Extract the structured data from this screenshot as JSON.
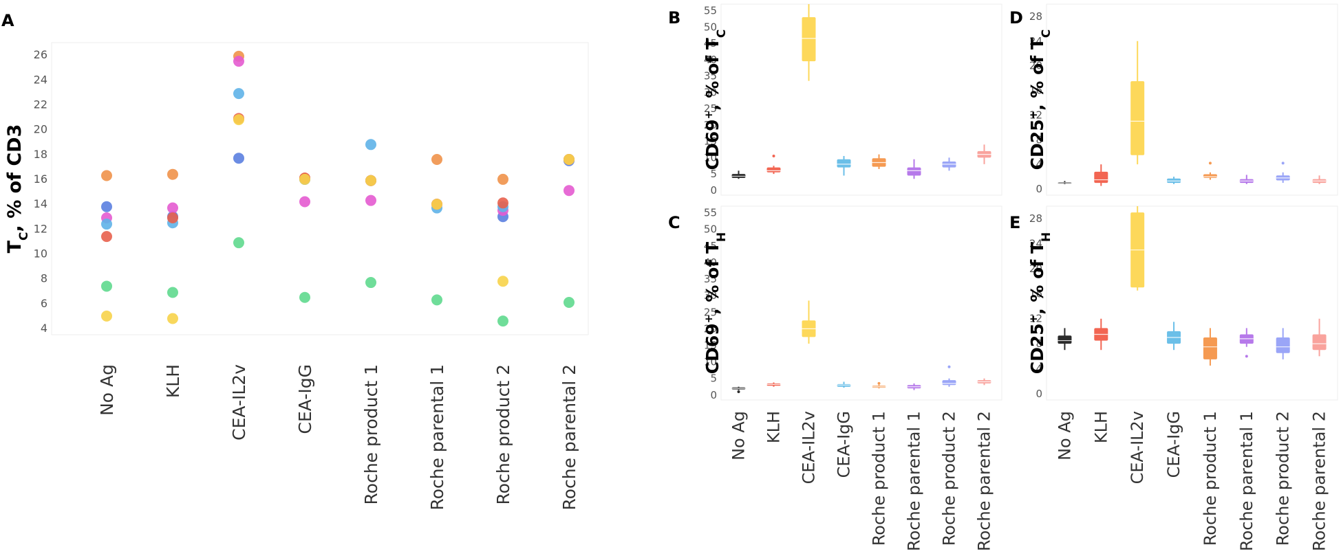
{
  "chart_data": [
    {
      "panel": "A",
      "type": "scatter",
      "ylabel_main": "T",
      "ylabel_sub": "C",
      "ylabel_rest": ", % of CD3",
      "categories": [
        "No Ag",
        "KLH",
        "CEA-IL2v",
        "CEA-IgG",
        "Roche product 1",
        "Roche parental 1",
        "Roche product 2",
        "Roche parental 2"
      ],
      "ylim": [
        3.5,
        27
      ],
      "yticks": [
        4,
        6,
        8,
        10,
        12,
        14,
        16,
        18,
        20,
        22,
        24,
        26
      ],
      "donors": [
        {
          "name": "orange",
          "color": "#f0924a",
          "values": [
            16.3,
            16.4,
            25.9,
            16.1,
            15.9,
            17.6,
            16.0,
            17.6
          ]
        },
        {
          "name": "blue",
          "color": "#5b7fe0",
          "values": [
            13.8,
            13.0,
            17.7,
            16.0,
            15.9,
            14.0,
            13.0,
            17.5
          ]
        },
        {
          "name": "magenta",
          "color": "#e45bd0",
          "values": [
            12.9,
            13.7,
            25.5,
            14.2,
            14.3,
            14.0,
            13.5,
            15.1
          ]
        },
        {
          "name": "lightblue",
          "color": "#5fb3e8",
          "values": [
            12.4,
            12.5,
            22.9,
            16.0,
            18.8,
            13.7,
            13.8,
            17.6
          ]
        },
        {
          "name": "red",
          "color": "#e8604d",
          "values": [
            11.4,
            12.9,
            20.9,
            16.1,
            15.9,
            14.0,
            14.1,
            17.6
          ]
        },
        {
          "name": "green",
          "color": "#5fd98e",
          "values": [
            7.4,
            6.9,
            10.9,
            6.5,
            7.7,
            6.3,
            4.6,
            6.1
          ]
        },
        {
          "name": "yellow",
          "color": "#f7d34a",
          "values": [
            5.0,
            4.8,
            20.8,
            16.0,
            15.9,
            14.0,
            7.8,
            17.6
          ]
        }
      ]
    },
    {
      "panel": "B",
      "type": "box",
      "ylabel_main": "CD69",
      "ylabel_sup": "+",
      "ylabel_rest": ", % of T",
      "ylabel_sub": "C",
      "categories": [
        "No Ag",
        "KLH",
        "CEA-IL2v",
        "CEA-IgG",
        "Roche product 1",
        "Roche parental 1",
        "Roche product 2",
        "Roche parental 2"
      ],
      "ylim": [
        -1.5,
        57
      ],
      "yticks": [
        0,
        5,
        10,
        15,
        20,
        25,
        30,
        35,
        40,
        45,
        50,
        55
      ],
      "boxes": [
        {
          "min": 3.5,
          "q1": 3.8,
          "median": 4.3,
          "q3": 5.0,
          "max": 6.0,
          "outliers": []
        },
        {
          "min": 5.0,
          "q1": 5.5,
          "median": 6.0,
          "q3": 7.0,
          "max": 7.5,
          "outliers": [
            10.5
          ]
        },
        {
          "min": 33.5,
          "q1": 39.5,
          "median": 46.5,
          "q3": 53.0,
          "max": 57.0,
          "outliers": []
        },
        {
          "min": 4.5,
          "q1": 7.0,
          "median": 8.0,
          "q3": 9.5,
          "max": 10.5,
          "outliers": []
        },
        {
          "min": 6.5,
          "q1": 7.2,
          "median": 8.5,
          "q3": 9.8,
          "max": 11.0,
          "outliers": []
        },
        {
          "min": 3.5,
          "q1": 4.5,
          "median": 6.0,
          "q3": 7.0,
          "max": 9.5,
          "outliers": []
        },
        {
          "min": 6.0,
          "q1": 7.0,
          "median": 8.0,
          "q3": 8.8,
          "max": 10.0,
          "outliers": []
        },
        {
          "min": 8.0,
          "q1": 10.0,
          "median": 11.0,
          "q3": 12.0,
          "max": 14.0,
          "outliers": []
        }
      ]
    },
    {
      "panel": "C",
      "type": "box",
      "ylabel_main": "CD69",
      "ylabel_sup": "+",
      "ylabel_rest": ", % of T",
      "ylabel_sub": "H",
      "categories": [
        "No Ag",
        "KLH",
        "CEA-IL2v",
        "CEA-IgG",
        "Roche product 1",
        "Roche parental 1",
        "Roche product 2",
        "Roche parental 2"
      ],
      "ylim": [
        -1.5,
        57
      ],
      "yticks": [
        0,
        5,
        10,
        15,
        20,
        25,
        30,
        35,
        40,
        45,
        50,
        55
      ],
      "boxes": [
        {
          "min": 1.5,
          "q1": 1.7,
          "median": 2.0,
          "q3": 2.3,
          "max": 2.5,
          "outliers": [
            1.0
          ]
        },
        {
          "min": 2.5,
          "q1": 2.8,
          "median": 3.2,
          "q3": 3.5,
          "max": 3.8,
          "outliers": []
        },
        {
          "min": 15.5,
          "q1": 17.5,
          "median": 20.0,
          "q3": 22.5,
          "max": 28.5,
          "outliers": []
        },
        {
          "min": 2.2,
          "q1": 2.5,
          "median": 3.0,
          "q3": 3.3,
          "max": 4.0,
          "outliers": []
        },
        {
          "min": 2.0,
          "q1": 2.2,
          "median": 2.5,
          "q3": 2.8,
          "max": 3.0,
          "outliers": [
            3.5
          ]
        },
        {
          "min": 1.5,
          "q1": 2.0,
          "median": 2.5,
          "q3": 3.0,
          "max": 3.5,
          "outliers": []
        },
        {
          "min": 2.5,
          "q1": 3.0,
          "median": 3.5,
          "q3": 4.5,
          "max": 5.0,
          "outliers": [
            8.5
          ]
        },
        {
          "min": 3.0,
          "q1": 3.5,
          "median": 4.0,
          "q3": 4.5,
          "max": 5.0,
          "outliers": []
        }
      ]
    },
    {
      "panel": "D",
      "type": "box",
      "ylabel_main": "CD25",
      "ylabel_sup": "+",
      "ylabel_rest": ", % of T",
      "ylabel_sub": "C",
      "categories": [
        "No Ag",
        "KLH",
        "CEA-IL2v",
        "CEA-IgG",
        "Roche product 1",
        "Roche parental 1",
        "Roche product 2",
        "Roche parental 2"
      ],
      "ylim": [
        -1,
        30
      ],
      "yticks": [
        0,
        4,
        8,
        12,
        16,
        20,
        24,
        28
      ],
      "boxes": [
        {
          "min": 0.8,
          "q1": 0.9,
          "median": 1.0,
          "q3": 1.1,
          "max": 1.3,
          "outliers": []
        },
        {
          "min": 0.5,
          "q1": 1.0,
          "median": 1.5,
          "q3": 2.8,
          "max": 4.0,
          "outliers": []
        },
        {
          "min": 4.0,
          "q1": 5.5,
          "median": 11.0,
          "q3": 17.5,
          "max": 24.0,
          "outliers": []
        },
        {
          "min": 0.8,
          "q1": 1.0,
          "median": 1.3,
          "q3": 1.7,
          "max": 2.0,
          "outliers": []
        },
        {
          "min": 1.5,
          "q1": 1.8,
          "median": 2.0,
          "q3": 2.4,
          "max": 2.7,
          "outliers": [
            4.2
          ]
        },
        {
          "min": 0.8,
          "q1": 1.0,
          "median": 1.3,
          "q3": 1.6,
          "max": 2.3,
          "outliers": []
        },
        {
          "min": 1.0,
          "q1": 1.4,
          "median": 1.8,
          "q3": 2.2,
          "max": 2.7,
          "outliers": [
            4.2
          ]
        },
        {
          "min": 0.8,
          "q1": 1.0,
          "median": 1.3,
          "q3": 1.6,
          "max": 2.2,
          "outliers": []
        }
      ]
    },
    {
      "panel": "E",
      "type": "box",
      "ylabel_main": "CD25",
      "ylabel_sup": "+",
      "ylabel_rest": ", % of T",
      "ylabel_sub": "H",
      "categories": [
        "No Ag",
        "KLH",
        "CEA-IL2v",
        "CEA-IgG",
        "Roche product 1",
        "Roche parental 1",
        "Roche product 2",
        "Roche parental 2"
      ],
      "ylim": [
        -1,
        30
      ],
      "yticks": [
        0,
        4,
        8,
        12,
        16,
        20,
        24,
        28
      ],
      "boxes": [
        {
          "min": 7.0,
          "q1": 8.0,
          "median": 8.5,
          "q3": 9.3,
          "max": 10.5,
          "outliers": []
        },
        {
          "min": 7.0,
          "q1": 8.5,
          "median": 9.5,
          "q3": 10.5,
          "max": 12.0,
          "outliers": []
        },
        {
          "min": 16.5,
          "q1": 17.0,
          "median": 23.0,
          "q3": 29.0,
          "max": 30.0,
          "outliers": []
        },
        {
          "min": 7.0,
          "q1": 8.0,
          "median": 9.0,
          "q3": 10.0,
          "max": 11.5,
          "outliers": []
        },
        {
          "min": 4.5,
          "q1": 5.5,
          "median": 7.5,
          "q3": 9.0,
          "max": 10.5,
          "outliers": []
        },
        {
          "min": 7.5,
          "q1": 8.0,
          "median": 8.8,
          "q3": 9.5,
          "max": 10.5,
          "outliers": [
            6.0
          ]
        },
        {
          "min": 5.5,
          "q1": 6.5,
          "median": 7.5,
          "q3": 9.0,
          "max": 10.5,
          "outliers": []
        },
        {
          "min": 6.0,
          "q1": 7.0,
          "median": 8.0,
          "q3": 9.5,
          "max": 12.0,
          "outliers": []
        }
      ]
    }
  ],
  "box_colors": [
    "#2b2b2b",
    "#f26552",
    "#fdd85a",
    "#6bbfe8",
    "#f59a52",
    "#b679ea",
    "#9aa5f7",
    "#f9a39d"
  ]
}
